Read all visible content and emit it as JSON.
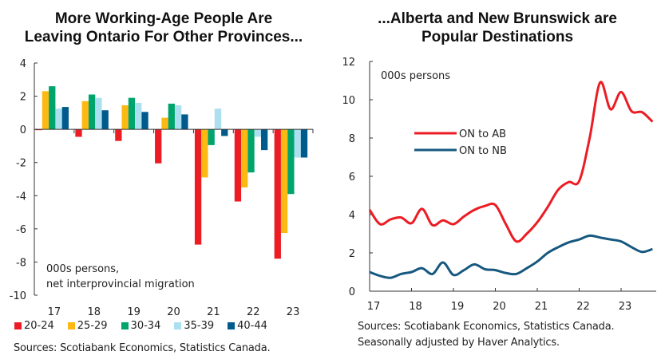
{
  "chart_data": [
    {
      "type": "bar",
      "title": "More Working-Age People Are Leaving Ontario For Other Provinces...",
      "title_lines": [
        "More Working-Age People Are",
        "Leaving Ontario For Other Provinces..."
      ],
      "annotation_lines": [
        "000s persons,",
        "net interprovincial migration"
      ],
      "categories": [
        "17",
        "18",
        "19",
        "20",
        "21",
        "22",
        "23"
      ],
      "ylim": [
        -10,
        4
      ],
      "yticks": [
        4,
        2,
        0,
        -2,
        -4,
        -6,
        -8,
        -10
      ],
      "legend": "bottom",
      "grid": false,
      "series": [
        {
          "name": "20-24",
          "color": "#ed1c24",
          "values": [
            -0.05,
            -0.45,
            -0.7,
            -2.05,
            -6.95,
            -4.35,
            -7.8
          ]
        },
        {
          "name": "25-29",
          "color": "#fdb913",
          "values": [
            2.3,
            1.7,
            1.45,
            0.7,
            -2.9,
            -3.5,
            -6.25
          ]
        },
        {
          "name": "30-34",
          "color": "#00a46c",
          "values": [
            2.6,
            2.1,
            1.9,
            1.55,
            -0.95,
            -2.6,
            -3.9
          ]
        },
        {
          "name": "35-39",
          "color": "#acdff0",
          "values": [
            1.25,
            1.9,
            1.6,
            1.45,
            1.25,
            -0.45,
            -1.7
          ]
        },
        {
          "name": "40-44",
          "color": "#005a8c",
          "values": [
            1.35,
            1.15,
            1.05,
            0.9,
            -0.4,
            -1.25,
            -1.7
          ]
        }
      ],
      "source": "Sources: Scotiabank Economics, Statistics Canada."
    },
    {
      "type": "line",
      "title": "...Alberta and New Brunswick are Popular Destinations",
      "title_lines": [
        "...Alberta and New Brunswick are",
        "Popular Destinations"
      ],
      "annotation": "000s persons",
      "x_tick_labels": [
        "17",
        "18",
        "19",
        "20",
        "21",
        "22",
        "23"
      ],
      "x": [
        "2017Q1",
        "2017Q2",
        "2017Q3",
        "2017Q4",
        "2018Q1",
        "2018Q2",
        "2018Q3",
        "2018Q4",
        "2019Q1",
        "2019Q2",
        "2019Q3",
        "2019Q4",
        "2020Q1",
        "2020Q2",
        "2020Q3",
        "2020Q4",
        "2021Q1",
        "2021Q2",
        "2021Q3",
        "2021Q4",
        "2022Q1",
        "2022Q2",
        "2022Q3",
        "2022Q4",
        "2023Q1",
        "2023Q2",
        "2023Q3",
        "2023Q4"
      ],
      "ylim": [
        0,
        12
      ],
      "yticks": [
        0,
        2,
        4,
        6,
        8,
        10,
        12
      ],
      "legend": "center-left",
      "grid": false,
      "series": [
        {
          "name": "ON to AB",
          "color": "#ec1c24",
          "values": [
            4.25,
            3.5,
            3.75,
            3.85,
            3.55,
            4.3,
            3.45,
            3.7,
            3.5,
            3.9,
            4.25,
            4.45,
            4.5,
            3.5,
            2.6,
            3.0,
            3.6,
            4.4,
            5.3,
            5.7,
            5.75,
            8.0,
            10.9,
            9.5,
            10.4,
            9.4,
            9.35,
            8.85
          ]
        },
        {
          "name": "ON to NB",
          "color": "#16587f",
          "values": [
            1.0,
            0.8,
            0.7,
            0.9,
            1.0,
            1.2,
            0.9,
            1.5,
            0.85,
            1.1,
            1.4,
            1.15,
            1.1,
            0.95,
            0.9,
            1.2,
            1.55,
            2.0,
            2.3,
            2.55,
            2.7,
            2.9,
            2.8,
            2.7,
            2.6,
            2.3,
            2.05,
            2.2
          ]
        }
      ],
      "source_lines": [
        "Sources: Scotiabank Economics, Statistics Canada.",
        "Seasonally adjusted by Haver Analytics."
      ]
    }
  ]
}
